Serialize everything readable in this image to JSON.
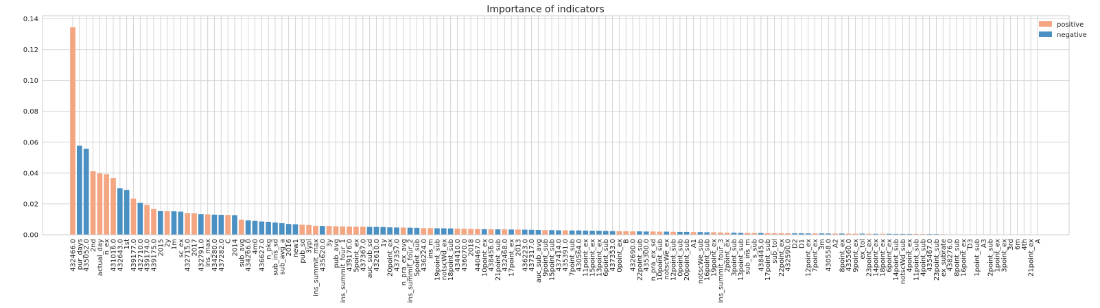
{
  "chart_data": {
    "type": "bar",
    "title": "Importance of indicators",
    "xlabel": "",
    "ylabel": "",
    "ylim": [
      0,
      0.142
    ],
    "yticks": [
      "0.00",
      "0.02",
      "0.04",
      "0.06",
      "0.08",
      "0.10",
      "0.12",
      "0.14"
    ],
    "grid": true,
    "legend_position": "top-right",
    "colors": {
      "positive": "#f4a582",
      "negative": "#4a90c2"
    },
    "legend": [
      {
        "key": "positive",
        "label": "positive"
      },
      {
        "key": "negative",
        "label": "negative"
      }
    ],
    "categories": [
      "432466.0",
      "pur_days",
      "435052.0",
      "2nd",
      "actual_day",
      "n_ex",
      "431016.0",
      "432643.0",
      "1st",
      "439177.0",
      "432710.0",
      "439174.0",
      "439175.0",
      "2015",
      "2y",
      "1m",
      "sc_ex",
      "432715.0",
      "2017",
      "432791.0",
      "ins_max",
      "434280.0",
      "437282.0",
      "C",
      "2014",
      "sub_avg",
      "434266.0",
      "4m0",
      "436627.0",
      "n_pkg",
      "sub_ins_sd",
      "sub_avg_a",
      "2016",
      "new1",
      "pub_sd",
      "3ypl",
      "ins_summit_max",
      "435620.0",
      "3y",
      "pub_avg",
      "ins_summit_four_1",
      "439176.0",
      "5point_ex",
      "437367.0",
      "auc_sub_sd",
      "432610.0",
      "1y",
      "20point_ex",
      "437357.0",
      "n_pra_ex_avg",
      "ins_summit_four_2",
      "5point_sub",
      "436224.0",
      "ins_m",
      "19point_sub",
      "notscWd_ex",
      "18point_sub",
      "434410.0",
      "436070.0",
      "2018",
      "440467.0",
      "10point_ex",
      "438456.0",
      "21point_sub",
      "432468.0",
      "17point_ex",
      "2013",
      "436223.0",
      "437317.0",
      "auc_sub_avg",
      "9point_sub",
      "15point_sub",
      "437414.0",
      "435391.0",
      "7point_sub",
      "430564.0",
      "11point_ex",
      "15point_ex",
      "13point_ex",
      "6point_sub",
      "437353.0",
      "0point_ex",
      "B",
      "432690.0",
      "22point_sub",
      "435300.0",
      "n_pra_ex_sd",
      "10point_sub",
      "notscWe_ex",
      "12point_sub",
      "0point_sub",
      "20point_sub",
      "A1",
      "notscWe_sub",
      "16point_sub",
      "19point_ex",
      "ins_summit_four_3",
      "2point_ex",
      "3point_sub",
      "13point_sub",
      "sub_ins_m",
      "s_sub",
      "438445.0",
      "17point_sub",
      "sub_tol",
      "22point_ex",
      "432590.0",
      "D2",
      "D1",
      "12point_ex",
      "7point_ex",
      "3m",
      "430558.0",
      "A2",
      "8point_ex",
      "435560.0",
      "9point_ex",
      "ex_tol",
      "23point_ex",
      "14point_ex",
      "18point_ex",
      "6point_ex",
      "14point_sub",
      "notscWd_sub",
      "4point_ex",
      "11point_sub",
      "4point_sub",
      "435467.0",
      "23point_sub",
      "ex_subrate",
      "438276.0",
      "8point_sub",
      "16point_ex",
      "D3",
      "1point_sub",
      "A3",
      "2point_sub",
      "1point_ex",
      "3point_ex",
      "3rd",
      "6m",
      "4th",
      "21point_ex",
      "A"
    ],
    "values": [
      0.1345,
      0.0578,
      0.0557,
      0.0412,
      0.0398,
      0.0393,
      0.0368,
      0.0301,
      0.029,
      0.0234,
      0.0207,
      0.0193,
      0.0168,
      0.0155,
      0.0154,
      0.0153,
      0.015,
      0.0141,
      0.014,
      0.0133,
      0.0132,
      0.013,
      0.0129,
      0.0128,
      0.0127,
      0.0098,
      0.0093,
      0.009,
      0.0086,
      0.0084,
      0.0079,
      0.0075,
      0.007,
      0.0068,
      0.0065,
      0.0063,
      0.0058,
      0.0057,
      0.0057,
      0.0055,
      0.0054,
      0.0053,
      0.0052,
      0.0052,
      0.0051,
      0.0051,
      0.005,
      0.0048,
      0.0047,
      0.0047,
      0.0046,
      0.0045,
      0.0043,
      0.0043,
      0.0042,
      0.0042,
      0.0041,
      0.004,
      0.0039,
      0.0038,
      0.0037,
      0.0036,
      0.0036,
      0.0035,
      0.0035,
      0.0034,
      0.0034,
      0.0033,
      0.0032,
      0.0031,
      0.003,
      0.003,
      0.0029,
      0.0029,
      0.0028,
      0.0028,
      0.0027,
      0.0026,
      0.0026,
      0.0025,
      0.0024,
      0.0023,
      0.0023,
      0.0022,
      0.0022,
      0.0021,
      0.0021,
      0.002,
      0.002,
      0.0019,
      0.0018,
      0.0018,
      0.0017,
      0.0017,
      0.0016,
      0.0016,
      0.0015,
      0.0014,
      0.0014,
      0.0013,
      0.0013,
      0.0012,
      0.0012,
      0.0011,
      0.0011,
      0.0011,
      0.001,
      0.001,
      0.001,
      0.0009,
      0.0009,
      0.0009,
      0.0008,
      0.0008,
      0.0008,
      0.0007,
      0.0007,
      0.0007,
      0.0006,
      0.0006,
      0.0006,
      0.0006,
      0.0005,
      0.0005,
      0.0005,
      0.0005,
      0.0004,
      0.0004,
      0.0004,
      0.0003,
      0.0002,
      0.0001,
      0.0001,
      0.0001,
      0.0001,
      0.0001,
      0,
      0,
      0,
      0,
      0,
      0,
      0,
      0
    ],
    "signs": [
      "positive",
      "negative",
      "negative",
      "positive",
      "positive",
      "positive",
      "positive",
      "negative",
      "negative",
      "positive",
      "negative",
      "positive",
      "positive",
      "negative",
      "positive",
      "negative",
      "negative",
      "positive",
      "positive",
      "negative",
      "positive",
      "negative",
      "negative",
      "positive",
      "negative",
      "positive",
      "negative",
      "negative",
      "negative",
      "negative",
      "negative",
      "negative",
      "negative",
      "negative",
      "positive",
      "positive",
      "positive",
      "negative",
      "positive",
      "positive",
      "positive",
      "positive",
      "positive",
      "positive",
      "negative",
      "negative",
      "negative",
      "negative",
      "negative",
      "positive",
      "negative",
      "negative",
      "positive",
      "positive",
      "negative",
      "negative",
      "negative",
      "positive",
      "positive",
      "positive",
      "positive",
      "negative",
      "positive",
      "negative",
      "positive",
      "negative",
      "positive",
      "negative",
      "negative",
      "negative",
      "positive",
      "negative",
      "negative",
      "positive",
      "negative",
      "negative",
      "negative",
      "negative",
      "negative",
      "negative",
      "negative",
      "positive",
      "positive",
      "positive",
      "negative",
      "negative",
      "positive",
      "positive",
      "negative",
      "positive",
      "negative",
      "negative",
      "positive",
      "negative",
      "negative",
      "positive",
      "positive",
      "positive",
      "negative",
      "negative",
      "positive",
      "positive",
      "negative",
      "positive",
      "positive",
      "positive",
      "positive",
      "negative",
      "negative",
      "negative",
      "positive",
      "negative",
      "negative",
      "positive",
      "negative",
      "positive",
      "positive",
      "negative",
      "positive",
      "negative",
      "positive",
      "negative",
      "negative",
      "negative",
      "negative",
      "positive",
      "positive",
      "negative",
      "negative",
      "positive",
      "negative",
      "positive",
      "positive",
      "positive",
      "positive",
      "positive",
      "positive",
      "positive",
      "positive",
      "positive",
      "positive",
      "positive",
      "positive",
      "positive",
      "positive"
    ]
  }
}
